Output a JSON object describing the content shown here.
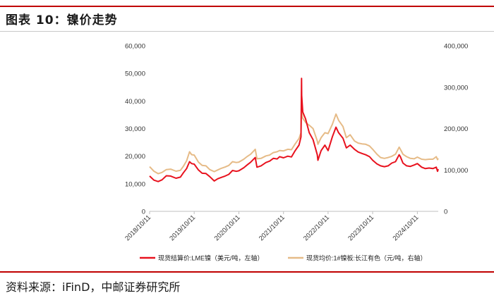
{
  "header": {
    "title": "图表 10：镍价走势"
  },
  "footer": {
    "source": "资料来源：iFinD，中邮证券研究所"
  },
  "colors": {
    "accent": "#c00000",
    "lme": "#e8121e",
    "cj": "#e6bb87"
  },
  "chart_data": {
    "type": "line",
    "x_tick_labels": [
      "2018/10/11",
      "2019/10/11",
      "2020/10/11",
      "2021/10/11",
      "2022/10/11",
      "2023/10/11",
      "2024/10/11"
    ],
    "x_range": [
      "2018/10/11",
      "2025/03/31"
    ],
    "left_axis": {
      "ticks": [
        0,
        10000,
        20000,
        30000,
        40000,
        50000,
        60000
      ],
      "tick_labels": [
        "0",
        "10,000",
        "20,000",
        "30,000",
        "40,000",
        "50,000",
        "60,000"
      ],
      "range": [
        0,
        60000
      ]
    },
    "right_axis": {
      "ticks": [
        0,
        100000,
        200000,
        300000,
        400000
      ],
      "tick_labels": [
        "0",
        "100,000",
        "200,000",
        "300,000",
        "400,000"
      ],
      "range": [
        0,
        400000
      ]
    },
    "grid": false,
    "legend_position": "bottom",
    "series": [
      {
        "name": "现货结算价:LME镍（美元/吨，左轴）",
        "axis": "left",
        "color": "#e8121e",
        "points": [
          [
            "2018/10/11",
            12800
          ],
          [
            "2018/11/15",
            11300
          ],
          [
            "2018/12/20",
            10800
          ],
          [
            "2019/01/20",
            11400
          ],
          [
            "2019/02/25",
            12900
          ],
          [
            "2019/04/01",
            12800
          ],
          [
            "2019/05/15",
            12000
          ],
          [
            "2019/06/20",
            12400
          ],
          [
            "2019/07/15",
            14000
          ],
          [
            "2019/08/10",
            15500
          ],
          [
            "2019/09/03",
            18000
          ],
          [
            "2019/09/20",
            17300
          ],
          [
            "2019/10/11",
            17100
          ],
          [
            "2019/11/15",
            15000
          ],
          [
            "2019/12/15",
            13800
          ],
          [
            "2020/01/15",
            13700
          ],
          [
            "2020/02/15",
            12600
          ],
          [
            "2020/03/23",
            11000
          ],
          [
            "2020/04/20",
            11800
          ],
          [
            "2020/05/20",
            12300
          ],
          [
            "2020/06/20",
            12800
          ],
          [
            "2020/07/20",
            13400
          ],
          [
            "2020/08/20",
            14800
          ],
          [
            "2020/09/20",
            14500
          ],
          [
            "2020/10/11",
            14700
          ],
          [
            "2020/11/20",
            15800
          ],
          [
            "2020/12/20",
            16900
          ],
          [
            "2021/01/15",
            17800
          ],
          [
            "2021/02/22",
            19500
          ],
          [
            "2021/03/08",
            16000
          ],
          [
            "2021/04/10",
            16500
          ],
          [
            "2021/05/20",
            17700
          ],
          [
            "2021/06/20",
            18200
          ],
          [
            "2021/07/20",
            19200
          ],
          [
            "2021/08/20",
            19000
          ],
          [
            "2021/09/10",
            19800
          ],
          [
            "2021/10/11",
            19400
          ],
          [
            "2021/11/15",
            20000
          ],
          [
            "2021/12/15",
            19700
          ],
          [
            "2022/01/15",
            22000
          ],
          [
            "2022/02/15",
            24000
          ],
          [
            "2022/03/03",
            27000
          ],
          [
            "2022/03/08",
            48200
          ],
          [
            "2022/03/09",
            42000
          ],
          [
            "2022/03/18",
            36000
          ],
          [
            "2022/04/10",
            33500
          ],
          [
            "2022/05/10",
            28500
          ],
          [
            "2022/06/10",
            26000
          ],
          [
            "2022/07/15",
            20500
          ],
          [
            "2022/07/20",
            18500
          ],
          [
            "2022/08/15",
            22000
          ],
          [
            "2022/09/15",
            24000
          ],
          [
            "2022/10/11",
            22000
          ],
          [
            "2022/11/15",
            27000
          ],
          [
            "2022/12/15",
            30500
          ],
          [
            "2023/01/05",
            28500
          ],
          [
            "2023/02/10",
            26500
          ],
          [
            "2023/03/10",
            23000
          ],
          [
            "2023/04/10",
            24000
          ],
          [
            "2023/05/15",
            22500
          ],
          [
            "2023/06/15",
            21500
          ],
          [
            "2023/07/15",
            21000
          ],
          [
            "2023/08/15",
            20500
          ],
          [
            "2023/09/15",
            19800
          ],
          [
            "2023/10/11",
            18500
          ],
          [
            "2023/11/15",
            17200
          ],
          [
            "2023/12/15",
            16500
          ],
          [
            "2024/01/15",
            16200
          ],
          [
            "2024/02/15",
            16500
          ],
          [
            "2024/03/15",
            17500
          ],
          [
            "2024/04/15",
            18000
          ],
          [
            "2024/05/15",
            20500
          ],
          [
            "2024/05/25",
            19800
          ],
          [
            "2024/06/15",
            17500
          ],
          [
            "2024/07/15",
            16500
          ],
          [
            "2024/08/15",
            16300
          ],
          [
            "2024/09/15",
            16800
          ],
          [
            "2024/10/11",
            17300
          ],
          [
            "2024/11/15",
            16000
          ],
          [
            "2024/12/15",
            15500
          ],
          [
            "2025/01/15",
            15700
          ],
          [
            "2025/02/15",
            15500
          ],
          [
            "2025/03/15",
            16000
          ],
          [
            "2025/03/25",
            14500
          ],
          [
            "2025/03/31",
            15300
          ]
        ]
      },
      {
        "name": "现货均价:1#镍板:长江有色（元/吨，右轴）",
        "axis": "right",
        "color": "#e6bb87",
        "points": [
          [
            "2018/10/11",
            108000
          ],
          [
            "2018/11/15",
            97000
          ],
          [
            "2018/12/20",
            91000
          ],
          [
            "2019/01/20",
            94000
          ],
          [
            "2019/02/25",
            101000
          ],
          [
            "2019/04/01",
            102000
          ],
          [
            "2019/05/15",
            97000
          ],
          [
            "2019/06/20",
            99000
          ],
          [
            "2019/07/15",
            109000
          ],
          [
            "2019/08/10",
            122000
          ],
          [
            "2019/09/03",
            144000
          ],
          [
            "2019/09/20",
            137000
          ],
          [
            "2019/10/11",
            136000
          ],
          [
            "2019/11/15",
            119000
          ],
          [
            "2019/12/15",
            111000
          ],
          [
            "2020/01/15",
            110000
          ],
          [
            "2020/02/15",
            101000
          ],
          [
            "2020/03/23",
            96000
          ],
          [
            "2020/04/20",
            100000
          ],
          [
            "2020/05/20",
            104000
          ],
          [
            "2020/06/20",
            107000
          ],
          [
            "2020/07/20",
            111000
          ],
          [
            "2020/08/20",
            120000
          ],
          [
            "2020/09/20",
            118000
          ],
          [
            "2020/10/11",
            119000
          ],
          [
            "2020/11/20",
            126000
          ],
          [
            "2020/12/20",
            133000
          ],
          [
            "2021/01/15",
            138000
          ],
          [
            "2021/02/22",
            150000
          ],
          [
            "2021/03/08",
            127000
          ],
          [
            "2021/04/10",
            128000
          ],
          [
            "2021/05/20",
            134000
          ],
          [
            "2021/06/20",
            136000
          ],
          [
            "2021/07/20",
            142000
          ],
          [
            "2021/08/20",
            144000
          ],
          [
            "2021/09/10",
            147000
          ],
          [
            "2021/10/11",
            146000
          ],
          [
            "2021/11/15",
            150000
          ],
          [
            "2021/12/15",
            149000
          ],
          [
            "2022/01/15",
            163000
          ],
          [
            "2022/02/15",
            176000
          ],
          [
            "2022/03/03",
            190000
          ],
          [
            "2022/03/08",
            258000
          ],
          [
            "2022/03/09",
            240000
          ],
          [
            "2022/03/18",
            225000
          ],
          [
            "2022/04/10",
            215000
          ],
          [
            "2022/05/10",
            208000
          ],
          [
            "2022/06/10",
            200000
          ],
          [
            "2022/07/15",
            170000
          ],
          [
            "2022/07/20",
            162000
          ],
          [
            "2022/08/15",
            178000
          ],
          [
            "2022/09/15",
            190000
          ],
          [
            "2022/10/11",
            188000
          ],
          [
            "2022/11/15",
            210000
          ],
          [
            "2022/12/15",
            235000
          ],
          [
            "2023/01/05",
            220000
          ],
          [
            "2023/02/10",
            205000
          ],
          [
            "2023/03/10",
            178000
          ],
          [
            "2023/04/10",
            185000
          ],
          [
            "2023/05/15",
            170000
          ],
          [
            "2023/06/15",
            165000
          ],
          [
            "2023/07/15",
            163000
          ],
          [
            "2023/08/15",
            162000
          ],
          [
            "2023/09/15",
            158000
          ],
          [
            "2023/10/11",
            150000
          ],
          [
            "2023/11/15",
            138000
          ],
          [
            "2023/12/15",
            130000
          ],
          [
            "2024/01/15",
            128000
          ],
          [
            "2024/02/15",
            130000
          ],
          [
            "2024/03/15",
            133000
          ],
          [
            "2024/04/15",
            138000
          ],
          [
            "2024/05/15",
            155000
          ],
          [
            "2024/05/25",
            150000
          ],
          [
            "2024/06/15",
            138000
          ],
          [
            "2024/07/15",
            132000
          ],
          [
            "2024/08/15",
            128000
          ],
          [
            "2024/09/15",
            127000
          ],
          [
            "2024/10/11",
            131000
          ],
          [
            "2024/11/15",
            126000
          ],
          [
            "2024/12/15",
            125000
          ],
          [
            "2025/01/15",
            126000
          ],
          [
            "2025/02/15",
            126000
          ],
          [
            "2025/03/15",
            132000
          ],
          [
            "2025/03/25",
            125000
          ],
          [
            "2025/03/31",
            128000
          ]
        ]
      }
    ]
  }
}
